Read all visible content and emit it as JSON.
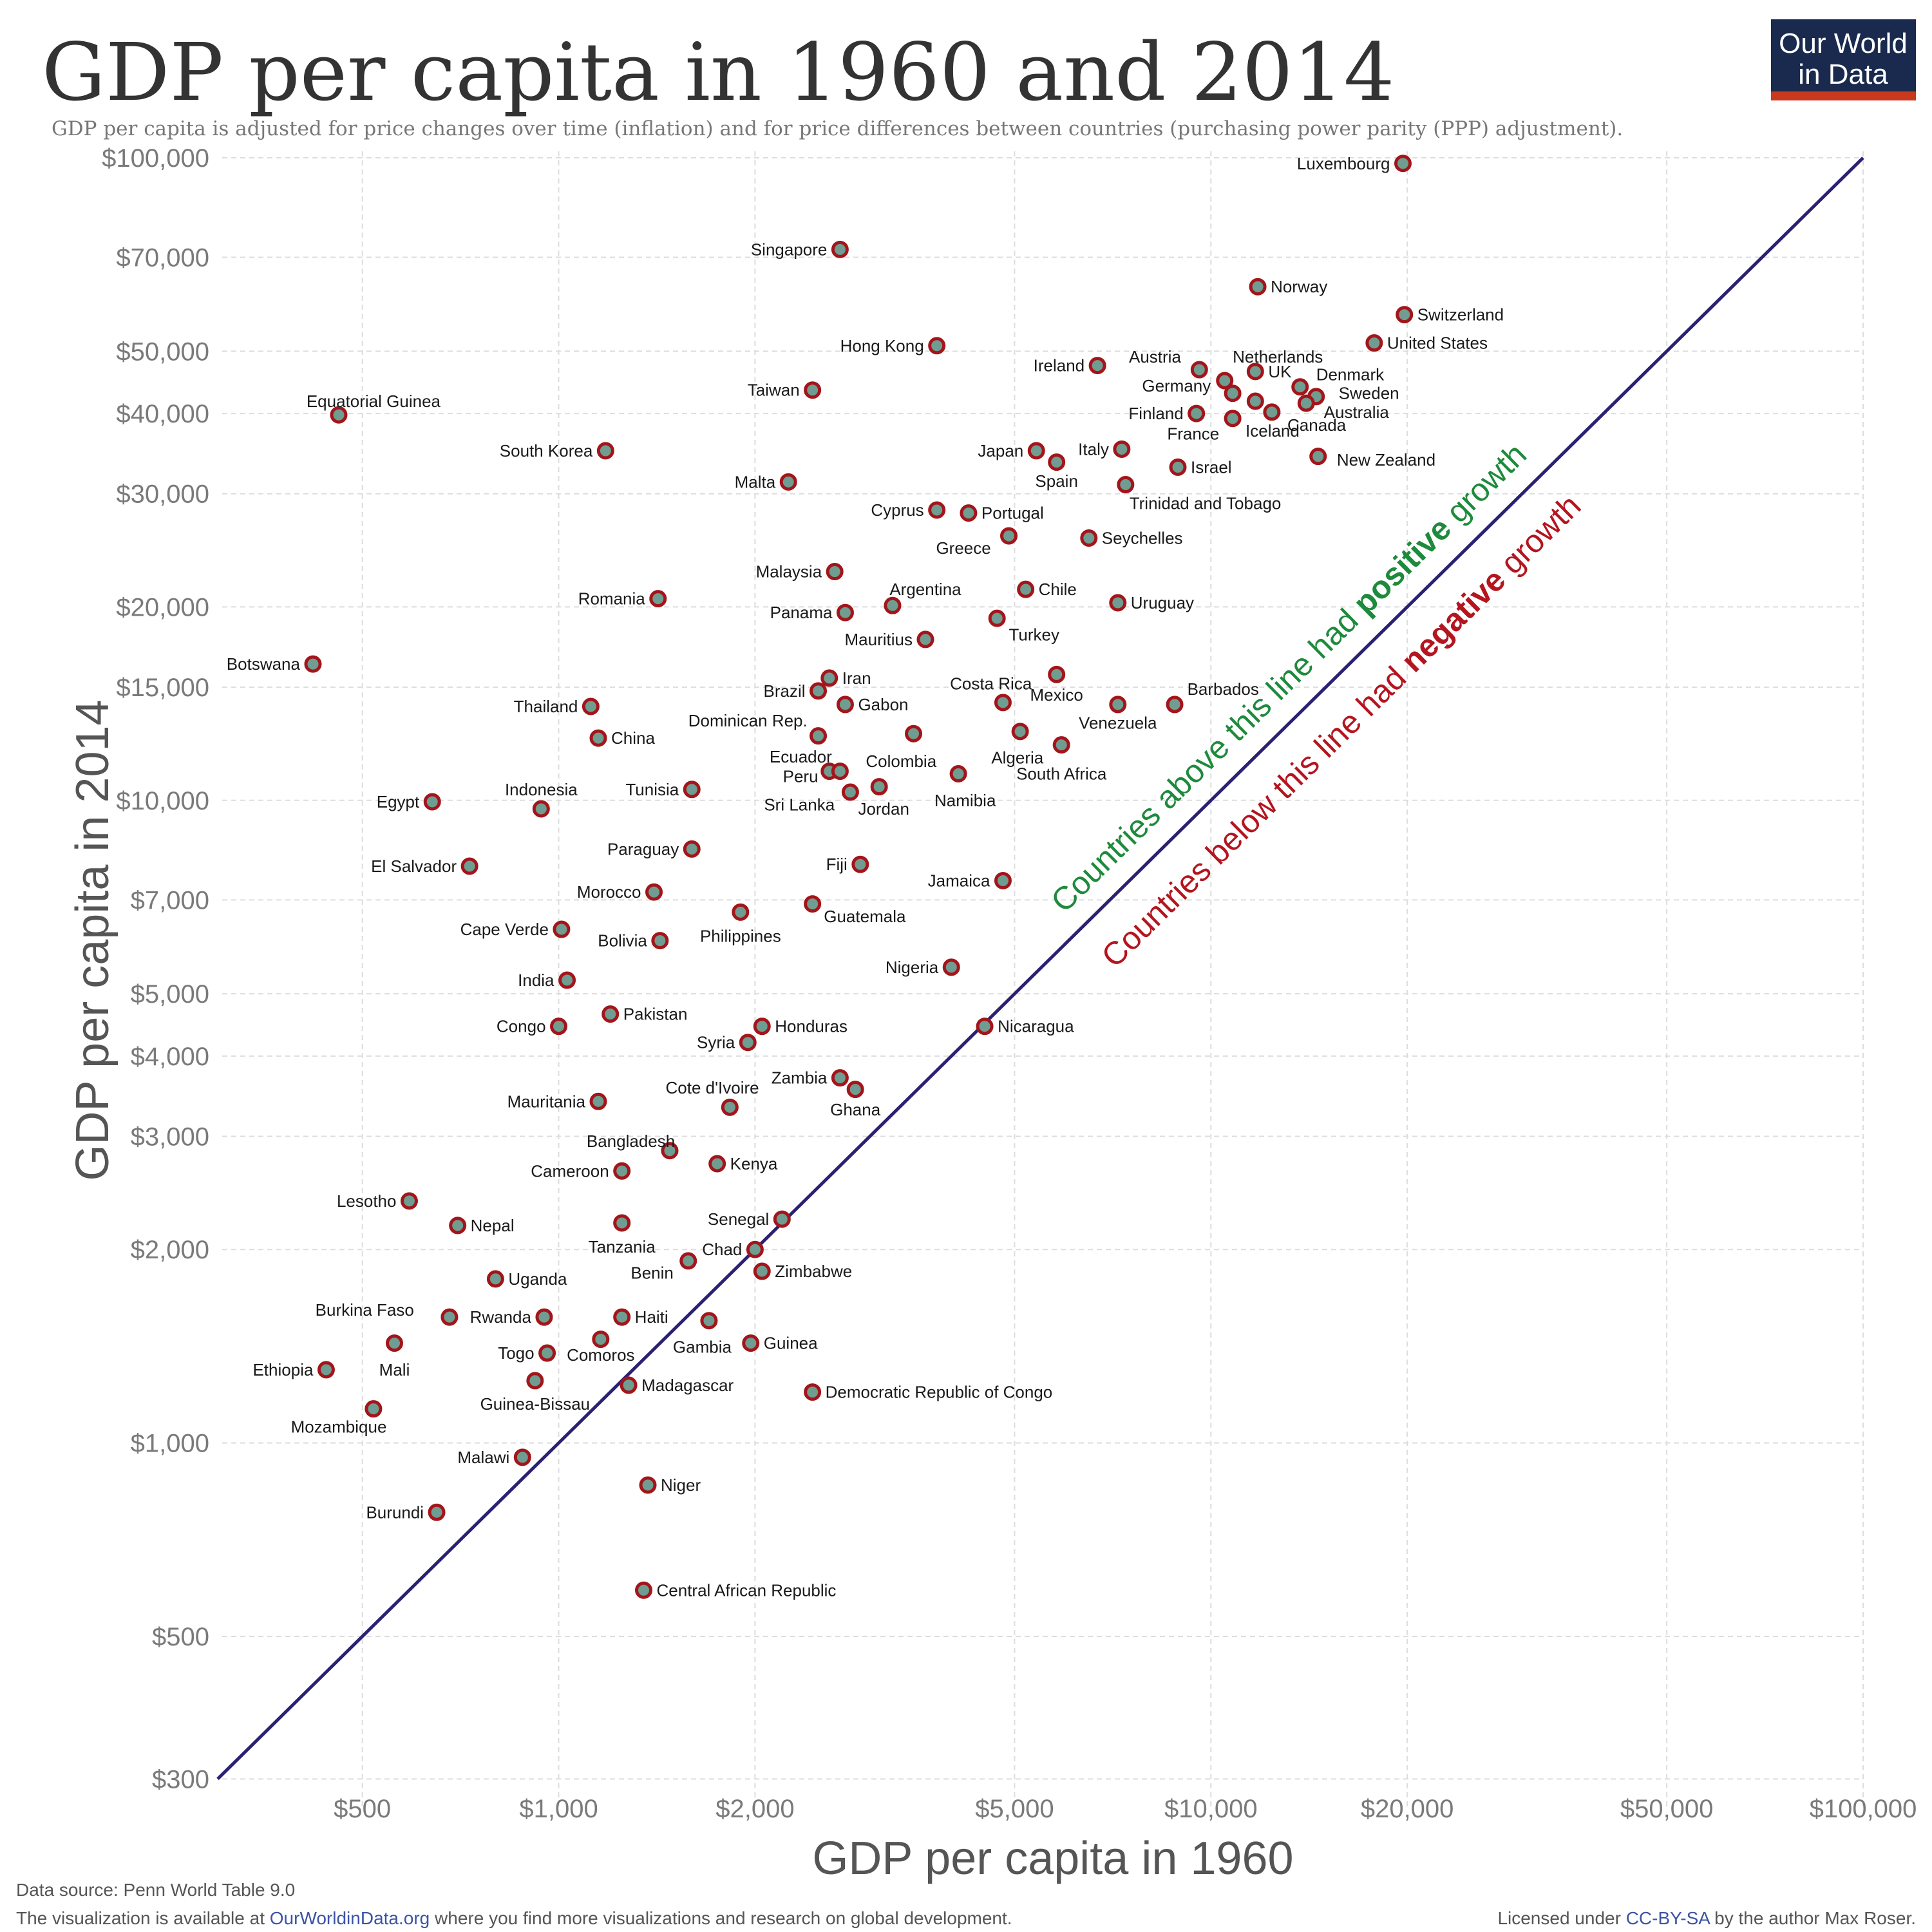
{
  "title": "GDP per capita in 1960 and 2014",
  "subtitle": "GDP per capita is adjusted for price changes over time (inflation) and for price differences between countries (purchasing power parity (PPP) adjustment).",
  "logo": {
    "line1": "Our World",
    "line2": "in Data",
    "bg": "#1a2a4f",
    "accent": "#c8391d"
  },
  "footer": {
    "source": "Data source: Penn World Table 9.0",
    "visualization_prefix": "The visualization is available at ",
    "visualization_link": "OurWorldinData.org",
    "visualization_suffix": " where you find more visualizations and research on global development.",
    "license_prefix": "Licensed under ",
    "license_link": "CC-BY-SA",
    "license_suffix": " by the author Max Roser."
  },
  "annotations": {
    "above": {
      "pre": "Countries above this line had ",
      "bold": "positive",
      "post": " growth",
      "color": "#1e8a3c"
    },
    "below": {
      "pre": "Countries below this line had ",
      "bold": "negative",
      "post": " growth",
      "color": "#b4151f"
    }
  },
  "colors": {
    "point_fill": "#6f9d91",
    "point_stroke": "#a3151b",
    "diagonal": "#2a2173"
  },
  "chart_data": {
    "type": "scatter",
    "xlabel": "GDP per capita in 1960",
    "ylabel": "GDP per capita in 2014",
    "x_scale": "log",
    "y_scale": "log",
    "xlim": [
      300,
      100000
    ],
    "ylim": [
      270,
      100000
    ],
    "grid": true,
    "x_ticks": [
      {
        "value": 500,
        "label": "$500"
      },
      {
        "value": 1000,
        "label": "$1,000"
      },
      {
        "value": 2000,
        "label": "$2,000"
      },
      {
        "value": 5000,
        "label": "$5,000"
      },
      {
        "value": 10000,
        "label": "$10,000"
      },
      {
        "value": 20000,
        "label": "$20,000"
      },
      {
        "value": 50000,
        "label": "$50,000"
      },
      {
        "value": 100000,
        "label": "$100,000"
      }
    ],
    "y_ticks": [
      {
        "value": 300,
        "label": "$300"
      },
      {
        "value": 500,
        "label": "$500"
      },
      {
        "value": 1000,
        "label": "$1,000"
      },
      {
        "value": 2000,
        "label": "$2,000"
      },
      {
        "value": 3000,
        "label": "$3,000"
      },
      {
        "value": 4000,
        "label": "$4,000"
      },
      {
        "value": 5000,
        "label": "$5,000"
      },
      {
        "value": 7000,
        "label": "$7,000"
      },
      {
        "value": 10000,
        "label": "$10,000"
      },
      {
        "value": 15000,
        "label": "$15,000"
      },
      {
        "value": 20000,
        "label": "$20,000"
      },
      {
        "value": 30000,
        "label": "$30,000"
      },
      {
        "value": 40000,
        "label": "$40,000"
      },
      {
        "value": 50000,
        "label": "$50,000"
      },
      {
        "value": 70000,
        "label": "$70,000"
      },
      {
        "value": 100000,
        "label": "$100,000"
      }
    ],
    "points": [
      {
        "name": "Luxembourg",
        "x": 19700,
        "y": 98000,
        "side": "left"
      },
      {
        "name": "Singapore",
        "x": 2700,
        "y": 72000,
        "side": "left"
      },
      {
        "name": "Norway",
        "x": 11800,
        "y": 63000,
        "side": "right"
      },
      {
        "name": "Switzerland",
        "x": 19800,
        "y": 57000,
        "side": "right"
      },
      {
        "name": "United States",
        "x": 17800,
        "y": 51500,
        "side": "right"
      },
      {
        "name": "Hong Kong",
        "x": 3800,
        "y": 51000,
        "side": "left"
      },
      {
        "name": "Ireland",
        "x": 6700,
        "y": 47500,
        "side": "left"
      },
      {
        "name": "Austria",
        "x": 9600,
        "y": 46800,
        "side": "label",
        "lx": 9000,
        "ly": 49000,
        "anchor": "end"
      },
      {
        "name": "Netherlands",
        "x": 10500,
        "y": 45000,
        "side": "label",
        "lx": 10800,
        "ly": 49000,
        "anchor": "start"
      },
      {
        "name": "UK",
        "x": 11700,
        "y": 46500,
        "side": "right"
      },
      {
        "name": "Denmark",
        "x": 13700,
        "y": 44000,
        "side": "label",
        "lx": 14500,
        "ly": 46000,
        "anchor": "start"
      },
      {
        "name": "Germany",
        "x": 10800,
        "y": 43000,
        "side": "label",
        "lx": 10000,
        "ly": 44200,
        "anchor": "end"
      },
      {
        "name": "Sweden",
        "x": 14500,
        "y": 42500,
        "side": "label",
        "lx": 15700,
        "ly": 43000,
        "anchor": "start"
      },
      {
        "name": "Australia",
        "x": 14000,
        "y": 41500,
        "side": "label",
        "lx": 14900,
        "ly": 40200,
        "anchor": "start"
      },
      {
        "name": "Taiwan",
        "x": 2450,
        "y": 43500,
        "side": "left"
      },
      {
        "name": "Equatorial Guinea",
        "x": 460,
        "y": 39800,
        "side": "label",
        "lx": 520,
        "ly": 41800,
        "anchor": "middle"
      },
      {
        "name": "Finland",
        "x": 9500,
        "y": 40000,
        "side": "left"
      },
      {
        "name": "Iceland",
        "x": 10800,
        "y": 39300,
        "side": "label",
        "lx": 11300,
        "ly": 37600,
        "anchor": "start"
      },
      {
        "name": "Canada",
        "x": 12400,
        "y": 40200,
        "side": "label",
        "lx": 13100,
        "ly": 38400,
        "anchor": "start"
      },
      {
        "name": "France",
        "x": 11700,
        "y": 41800,
        "side": "label",
        "lx": 10300,
        "ly": 37200,
        "anchor": "end"
      },
      {
        "name": "South Korea",
        "x": 1180,
        "y": 35000,
        "side": "left"
      },
      {
        "name": "Italy",
        "x": 7300,
        "y": 35200,
        "side": "left"
      },
      {
        "name": "Japan",
        "x": 5400,
        "y": 35000,
        "side": "left"
      },
      {
        "name": "New Zealand",
        "x": 14600,
        "y": 34300,
        "side": "label",
        "lx": 15600,
        "ly": 33900,
        "anchor": "start"
      },
      {
        "name": "Spain",
        "x": 5800,
        "y": 33600,
        "side": "label",
        "lx": 5800,
        "ly": 31400,
        "anchor": "middle"
      },
      {
        "name": "Israel",
        "x": 8900,
        "y": 33000,
        "side": "right"
      },
      {
        "name": "Malta",
        "x": 2250,
        "y": 31300,
        "side": "left"
      },
      {
        "name": "Trinidad and Tobago",
        "x": 7400,
        "y": 31000,
        "side": "label",
        "lx": 7500,
        "ly": 29000,
        "anchor": "start"
      },
      {
        "name": "Cyprus",
        "x": 3800,
        "y": 28300,
        "side": "left"
      },
      {
        "name": "Portugal",
        "x": 4250,
        "y": 28000,
        "side": "right"
      },
      {
        "name": "Greece",
        "x": 4900,
        "y": 25800,
        "side": "label",
        "lx": 4600,
        "ly": 24700,
        "anchor": "end"
      },
      {
        "name": "Seychelles",
        "x": 6500,
        "y": 25600,
        "side": "right"
      },
      {
        "name": "Malaysia",
        "x": 2650,
        "y": 22700,
        "side": "left"
      },
      {
        "name": "Chile",
        "x": 5200,
        "y": 21300,
        "side": "right"
      },
      {
        "name": "Romania",
        "x": 1420,
        "y": 20600,
        "side": "left"
      },
      {
        "name": "Argentina",
        "x": 3250,
        "y": 20100,
        "side": "label",
        "lx": 3650,
        "ly": 21300,
        "anchor": "middle"
      },
      {
        "name": "Uruguay",
        "x": 7200,
        "y": 20300,
        "side": "right"
      },
      {
        "name": "Panama",
        "x": 2750,
        "y": 19600,
        "side": "left"
      },
      {
        "name": "Turkey",
        "x": 4700,
        "y": 19200,
        "side": "label",
        "lx": 4900,
        "ly": 18100,
        "anchor": "start"
      },
      {
        "name": "Mauritius",
        "x": 3650,
        "y": 17800,
        "side": "left"
      },
      {
        "name": "Botswana",
        "x": 420,
        "y": 16300,
        "side": "left"
      },
      {
        "name": "Mexico",
        "x": 5800,
        "y": 15700,
        "side": "label",
        "lx": 5800,
        "ly": 14600,
        "anchor": "middle"
      },
      {
        "name": "Iran",
        "x": 2600,
        "y": 15500,
        "side": "right"
      },
      {
        "name": "Brazil",
        "x": 2500,
        "y": 14800,
        "side": "left"
      },
      {
        "name": "Costa Rica",
        "x": 4800,
        "y": 14200,
        "side": "label",
        "lx": 4600,
        "ly": 15200,
        "anchor": "middle"
      },
      {
        "name": "Gabon",
        "x": 2750,
        "y": 14100,
        "side": "right"
      },
      {
        "name": "Venezuela",
        "x": 7200,
        "y": 14100,
        "side": "label",
        "lx": 7200,
        "ly": 13200,
        "anchor": "middle"
      },
      {
        "name": "Barbados",
        "x": 8800,
        "y": 14100,
        "side": "label",
        "lx": 9200,
        "ly": 14900,
        "anchor": "start"
      },
      {
        "name": "Thailand",
        "x": 1120,
        "y": 14000,
        "side": "left"
      },
      {
        "name": "Dominican Rep.",
        "x": 2500,
        "y": 12600,
        "side": "label",
        "lx": 1950,
        "ly": 13300,
        "anchor": "middle"
      },
      {
        "name": "China",
        "x": 1150,
        "y": 12500,
        "side": "right"
      },
      {
        "name": "Algeria",
        "x": 5100,
        "y": 12800,
        "side": "label",
        "lx": 5050,
        "ly": 11650,
        "anchor": "middle"
      },
      {
        "name": "South Africa",
        "x": 5900,
        "y": 12200,
        "side": "label",
        "lx": 5900,
        "ly": 11000,
        "anchor": "middle"
      },
      {
        "name": "Colombia",
        "x": 3500,
        "y": 12700,
        "side": "label",
        "lx": 3350,
        "ly": 11500,
        "anchor": "middle"
      },
      {
        "name": "Ecuador",
        "x": 2600,
        "y": 11100,
        "side": "label",
        "lx": 2350,
        "ly": 11700,
        "anchor": "middle"
      },
      {
        "name": "Peru",
        "x": 2700,
        "y": 11100,
        "side": "label",
        "lx": 2500,
        "ly": 10900,
        "anchor": "end"
      },
      {
        "name": "Namibia",
        "x": 4100,
        "y": 11000,
        "side": "label",
        "lx": 4200,
        "ly": 10000,
        "anchor": "middle"
      },
      {
        "name": "Tunisia",
        "x": 1600,
        "y": 10400,
        "side": "left"
      },
      {
        "name": "Jordan",
        "x": 3100,
        "y": 10500,
        "side": "label",
        "lx": 3150,
        "ly": 9700,
        "anchor": "middle"
      },
      {
        "name": "Sri Lanka",
        "x": 2800,
        "y": 10300,
        "side": "label",
        "lx": 2650,
        "ly": 9850,
        "anchor": "end"
      },
      {
        "name": "Egypt",
        "x": 640,
        "y": 9950,
        "side": "left"
      },
      {
        "name": "Indonesia",
        "x": 940,
        "y": 9700,
        "side": "label",
        "lx": 940,
        "ly": 10400,
        "anchor": "middle"
      },
      {
        "name": "Paraguay",
        "x": 1600,
        "y": 8400,
        "side": "left"
      },
      {
        "name": "Fiji",
        "x": 2900,
        "y": 7950,
        "side": "left"
      },
      {
        "name": "El Salvador",
        "x": 730,
        "y": 7900,
        "side": "left"
      },
      {
        "name": "Jamaica",
        "x": 4800,
        "y": 7500,
        "side": "left"
      },
      {
        "name": "Morocco",
        "x": 1400,
        "y": 7200,
        "side": "left"
      },
      {
        "name": "Guatemala",
        "x": 2450,
        "y": 6900,
        "side": "label",
        "lx": 2550,
        "ly": 6600,
        "anchor": "start"
      },
      {
        "name": "Philippines",
        "x": 1900,
        "y": 6700,
        "side": "label",
        "lx": 1900,
        "ly": 6150,
        "anchor": "middle"
      },
      {
        "name": "Cape Verde",
        "x": 1010,
        "y": 6300,
        "side": "left"
      },
      {
        "name": "Bolivia",
        "x": 1430,
        "y": 6050,
        "side": "left"
      },
      {
        "name": "Nigeria",
        "x": 4000,
        "y": 5500,
        "side": "left"
      },
      {
        "name": "India",
        "x": 1030,
        "y": 5250,
        "side": "left"
      },
      {
        "name": "Pakistan",
        "x": 1200,
        "y": 4650,
        "side": "right"
      },
      {
        "name": "Congo",
        "x": 1000,
        "y": 4450,
        "side": "left"
      },
      {
        "name": "Honduras",
        "x": 2050,
        "y": 4450,
        "side": "right"
      },
      {
        "name": "Nicaragua",
        "x": 4500,
        "y": 4450,
        "side": "right"
      },
      {
        "name": "Syria",
        "x": 1950,
        "y": 4200,
        "side": "left"
      },
      {
        "name": "Zambia",
        "x": 2700,
        "y": 3700,
        "side": "left"
      },
      {
        "name": "Ghana",
        "x": 2850,
        "y": 3550,
        "side": "label",
        "lx": 2850,
        "ly": 3300,
        "anchor": "middle"
      },
      {
        "name": "Cote d'Ivoire",
        "x": 1830,
        "y": 3330,
        "side": "label",
        "lx": 1720,
        "ly": 3570,
        "anchor": "middle"
      },
      {
        "name": "Mauritania",
        "x": 1150,
        "y": 3400,
        "side": "left"
      },
      {
        "name": "Bangladesh",
        "x": 1480,
        "y": 2850,
        "side": "label",
        "lx": 1290,
        "ly": 2950,
        "anchor": "middle"
      },
      {
        "name": "Kenya",
        "x": 1750,
        "y": 2720,
        "side": "right"
      },
      {
        "name": "Cameroon",
        "x": 1250,
        "y": 2650,
        "side": "left"
      },
      {
        "name": "Lesotho",
        "x": 590,
        "y": 2380,
        "side": "left"
      },
      {
        "name": "Senegal",
        "x": 2200,
        "y": 2230,
        "side": "left"
      },
      {
        "name": "Nepal",
        "x": 700,
        "y": 2180,
        "side": "right"
      },
      {
        "name": "Tanzania",
        "x": 1250,
        "y": 2200,
        "side": "label",
        "lx": 1250,
        "ly": 2020,
        "anchor": "middle"
      },
      {
        "name": "Chad",
        "x": 2000,
        "y": 2000,
        "side": "left"
      },
      {
        "name": "Benin",
        "x": 1580,
        "y": 1920,
        "side": "label",
        "lx": 1500,
        "ly": 1840,
        "anchor": "end"
      },
      {
        "name": "Zimbabwe",
        "x": 2050,
        "y": 1850,
        "side": "right"
      },
      {
        "name": "Uganda",
        "x": 800,
        "y": 1800,
        "side": "right"
      },
      {
        "name": "Burkina Faso",
        "x": 680,
        "y": 1570,
        "side": "label",
        "lx": 600,
        "ly": 1610,
        "anchor": "end"
      },
      {
        "name": "Rwanda",
        "x": 950,
        "y": 1570,
        "side": "left"
      },
      {
        "name": "Haiti",
        "x": 1250,
        "y": 1570,
        "side": "right"
      },
      {
        "name": "Gambia",
        "x": 1700,
        "y": 1550,
        "side": "label",
        "lx": 1660,
        "ly": 1410,
        "anchor": "middle"
      },
      {
        "name": "Guinea",
        "x": 1970,
        "y": 1430,
        "side": "right"
      },
      {
        "name": "Mali",
        "x": 560,
        "y": 1430,
        "side": "label",
        "lx": 560,
        "ly": 1300,
        "anchor": "middle"
      },
      {
        "name": "Comoros",
        "x": 1160,
        "y": 1450,
        "side": "label",
        "lx": 1160,
        "ly": 1370,
        "anchor": "middle"
      },
      {
        "name": "Togo",
        "x": 960,
        "y": 1380,
        "side": "left"
      },
      {
        "name": "Ethiopia",
        "x": 440,
        "y": 1300,
        "side": "left"
      },
      {
        "name": "Guinea-Bissau",
        "x": 920,
        "y": 1250,
        "side": "label",
        "lx": 920,
        "ly": 1150,
        "anchor": "middle"
      },
      {
        "name": "Madagascar",
        "x": 1280,
        "y": 1230,
        "side": "right"
      },
      {
        "name": "Democratic Republic of Congo",
        "x": 2450,
        "y": 1200,
        "side": "right"
      },
      {
        "name": "Mozambique",
        "x": 520,
        "y": 1130,
        "side": "label",
        "lx": 460,
        "ly": 1060,
        "anchor": "middle"
      },
      {
        "name": "Malawi",
        "x": 880,
        "y": 950,
        "side": "left"
      },
      {
        "name": "Niger",
        "x": 1370,
        "y": 860,
        "side": "right"
      },
      {
        "name": "Burundi",
        "x": 650,
        "y": 780,
        "side": "left"
      },
      {
        "name": "Central African Republic",
        "x": 1350,
        "y": 590,
        "side": "right"
      }
    ]
  }
}
